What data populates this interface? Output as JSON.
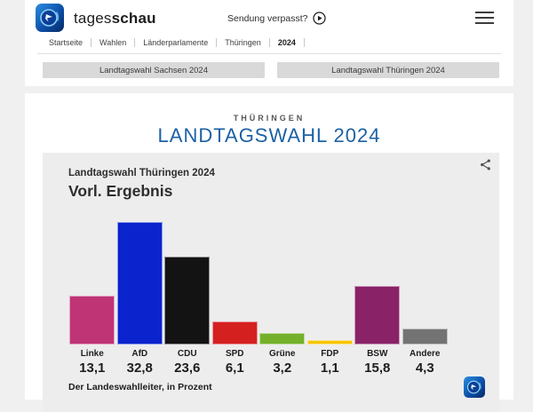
{
  "header": {
    "brand": {
      "name_regular": "tages",
      "name_bold": "schau"
    },
    "sendung_verpasst": "Sendung verpasst?",
    "breadcrumb": [
      "Startseite",
      "Wahlen",
      "Länderparlamente",
      "Thüringen",
      "2024"
    ],
    "current_crumb": "2024"
  },
  "election_nav": {
    "buttons": [
      "Landtagswahl Sachsen 2024",
      "Landtagswahl Thüringen 2024"
    ]
  },
  "main": {
    "kicker": "THÜRINGEN",
    "title": "LANDTAGSWAHL 2024",
    "title_color": "#1d61a4"
  },
  "chart": {
    "heading": "Landtagswahl Thüringen 2024",
    "subheading": "Vorl. Ergebnis",
    "source": "Der Landeswahlleiter, in Prozent"
  },
  "chart_data": {
    "type": "bar",
    "title": "Landtagswahl Thüringen 2024 — Vorl. Ergebnis",
    "categories": [
      "Linke",
      "AfD",
      "CDU",
      "SPD",
      "Grüne",
      "FDP",
      "BSW",
      "Andere"
    ],
    "values": [
      13.1,
      32.8,
      23.6,
      6.1,
      3.2,
      1.1,
      15.8,
      4.3
    ],
    "value_labels": [
      "13,1",
      "32,8",
      "23,6",
      "6,1",
      "3,2",
      "1,1",
      "15,8",
      "4,3"
    ],
    "colors": [
      "#be3475",
      "#0a23cd",
      "#131313",
      "#d52020",
      "#74b02a",
      "#f6c500",
      "#8a2268",
      "#737373"
    ],
    "unit": "Prozent",
    "xlabel": "",
    "ylabel": "Prozent",
    "ylim": [
      0,
      35
    ],
    "grid": false,
    "legend": "none",
    "source": "Der Landeswahlleiter, in Prozent"
  }
}
